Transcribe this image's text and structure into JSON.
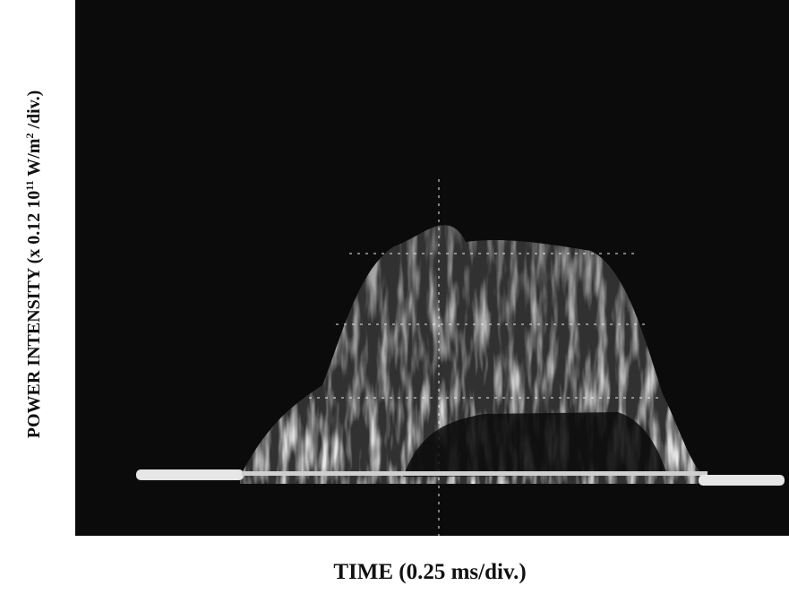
{
  "figure": {
    "y_label": [
      "POWER INTENSITY (x 0.12 10",
      "11",
      " W/m",
      "2",
      " /div.)"
    ],
    "x_label": "TIME (0.25 ms/div.)"
  }
}
